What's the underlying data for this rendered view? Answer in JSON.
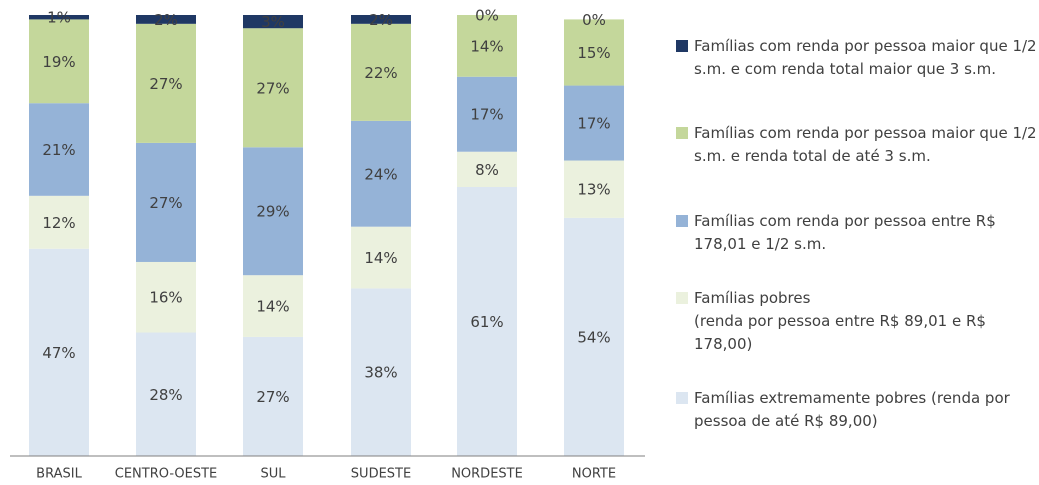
{
  "chart_data": {
    "type": "stacked_bar",
    "categories": [
      "BRASIL",
      "CENTRO-OESTE",
      "SUL",
      "SUDESTE",
      "NORDESTE",
      "NORTE"
    ],
    "ylim": [
      0,
      100
    ],
    "series": [
      {
        "name": "Famílias extremamente pobres (renda por pessoa de até R$ 89,00)",
        "color": "#dce6f1",
        "values": [
          47,
          28,
          27,
          38,
          61,
          54
        ],
        "value_labels": [
          "47%",
          "28%",
          "27%",
          "38%",
          "61%",
          "54%"
        ]
      },
      {
        "name": "Famílias pobres\n(renda por pessoa entre R$ 89,01 e R$ 178,00)",
        "color": "#ebf1de",
        "values": [
          12,
          16,
          14,
          14,
          8,
          13
        ],
        "value_labels": [
          "12%",
          "16%",
          "14%",
          "14%",
          "8%",
          "13%"
        ]
      },
      {
        "name": "Famílias com renda por pessoa entre R$ 178,01 e 1/2 s.m.",
        "color": "#95b3d7",
        "values": [
          21,
          27,
          29,
          24,
          17,
          17
        ],
        "value_labels": [
          "21%",
          "27%",
          "29%",
          "24%",
          "17%",
          "17%"
        ]
      },
      {
        "name": "Famílias com renda por pessoa maior que 1/2 s.m. e renda total de até 3 s.m.",
        "color": "#c4d79b",
        "values": [
          19,
          27,
          27,
          22,
          14,
          15
        ],
        "value_labels": [
          "19%",
          "27%",
          "27%",
          "22%",
          "14%",
          "15%"
        ]
      },
      {
        "name": "Famílias com renda por pessoa maior que 1/2 s.m. e com renda total maior que 3 s.m.",
        "color": "#1f3864",
        "values": [
          1,
          2,
          3,
          2,
          0,
          0
        ],
        "value_labels": [
          "1%",
          "2%",
          "3%",
          "2%",
          "0%",
          "0%"
        ]
      }
    ]
  }
}
